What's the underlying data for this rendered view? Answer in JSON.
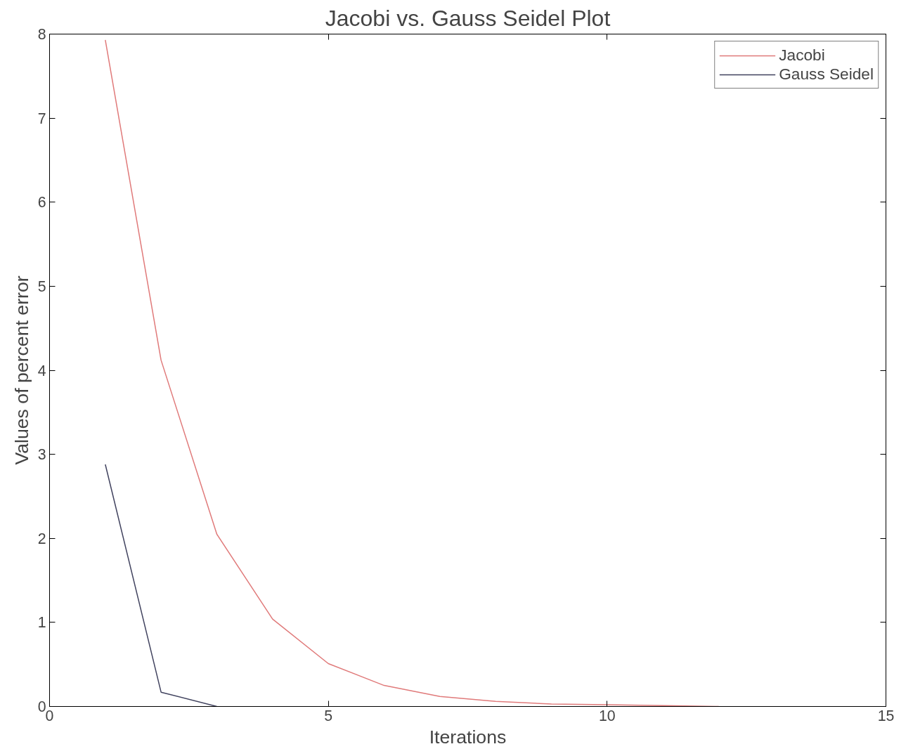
{
  "chart_data": {
    "type": "line",
    "title": "Jacobi vs. Gauss Seidel Plot",
    "xlabel": "Iterations",
    "ylabel": "Values of percent error",
    "series": [
      {
        "name": "Jacobi",
        "color": "#e07a7a",
        "x": [
          1,
          2,
          3,
          4,
          5,
          6,
          7,
          8,
          9,
          10,
          11,
          12
        ],
        "values": [
          7.93,
          4.12,
          2.05,
          1.04,
          0.51,
          0.25,
          0.12,
          0.06,
          0.03,
          0.02,
          0.01,
          0.0
        ]
      },
      {
        "name": "Gauss Seidel",
        "color": "#40425e",
        "x": [
          1,
          2,
          3
        ],
        "values": [
          2.88,
          0.17,
          0.0
        ]
      }
    ],
    "xlim": [
      0,
      15
    ],
    "xticks": [
      0,
      5,
      10,
      15
    ],
    "ylim": [
      0,
      8
    ],
    "yticks": [
      0,
      1,
      2,
      3,
      4,
      5,
      6,
      7,
      8
    ],
    "grid": false,
    "legend": "top right",
    "marker": "none",
    "line_style": "solid"
  }
}
